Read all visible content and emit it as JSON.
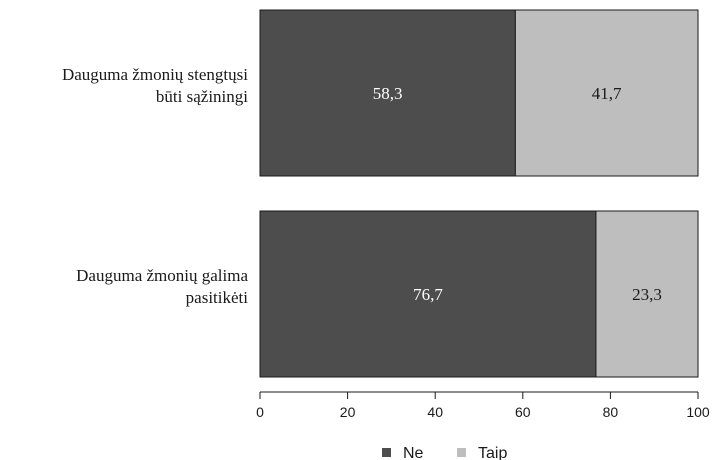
{
  "chart_data": {
    "type": "bar",
    "orientation": "horizontal",
    "stacked": true,
    "categories": [
      [
        "Dauguma žmonių stengtųsi",
        "būti sąžiningi"
      ],
      [
        "Dauguma žmonių galima",
        "pasitikėti"
      ]
    ],
    "series": [
      {
        "name": "Ne",
        "values": [
          58.3,
          76.7
        ],
        "labels": [
          "58,3",
          "76,7"
        ],
        "color": "#4d4d4d",
        "label_color": "#ffffff"
      },
      {
        "name": "Taip",
        "values": [
          41.7,
          23.3
        ],
        "labels": [
          "41,7",
          "23,3"
        ],
        "color": "#bebebe",
        "label_color": "#1a1a1a"
      }
    ],
    "xlim": [
      0,
      100
    ],
    "xticks": [
      0,
      20,
      40,
      60,
      80,
      100
    ],
    "legend_position": "bottom",
    "grid": false
  }
}
